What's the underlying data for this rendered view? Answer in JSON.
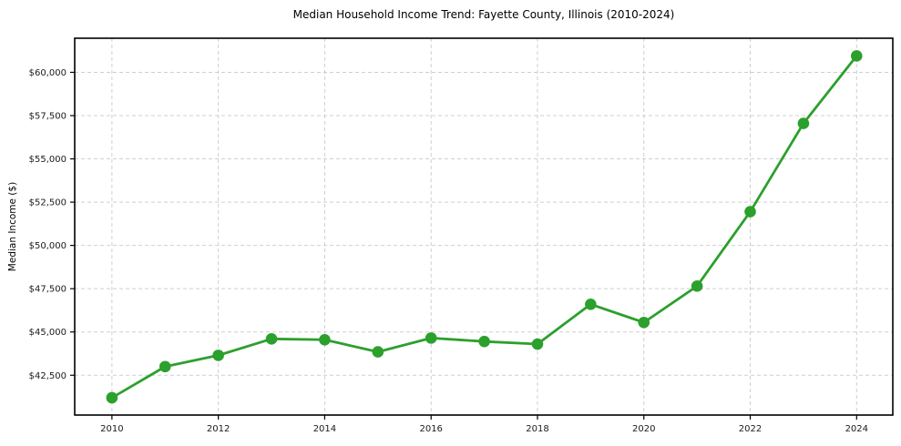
{
  "chart_data": {
    "type": "line",
    "title": "Median Household Income Trend: Fayette County, Illinois (2010-2024)",
    "xlabel": "",
    "ylabel": "Median Income ($)",
    "series_name": "Median Household Income",
    "x": [
      2010,
      2011,
      2012,
      2013,
      2014,
      2015,
      2016,
      2017,
      2018,
      2019,
      2020,
      2021,
      2022,
      2023,
      2024
    ],
    "values": [
      41200,
      43000,
      43650,
      44600,
      44550,
      43850,
      44650,
      44450,
      44300,
      46600,
      45550,
      47650,
      51950,
      57050,
      60950
    ],
    "xticks": [
      2010,
      2012,
      2014,
      2016,
      2018,
      2020,
      2022,
      2024
    ],
    "xtick_labels": [
      "2010",
      "2012",
      "2014",
      "2016",
      "2018",
      "2020",
      "2022",
      "2024"
    ],
    "yticks": [
      42500,
      45000,
      47500,
      50000,
      52500,
      55000,
      57500,
      60000
    ],
    "ytick_labels": [
      "$42,500",
      "$45,000",
      "$47,500",
      "$50,000",
      "$52,500",
      "$55,000",
      "$57,500",
      "$60,000"
    ],
    "xlim": [
      2009.3,
      2024.68
    ],
    "ylim": [
      40200,
      61970
    ],
    "grid": true,
    "grid_style": "dashed",
    "legend": false,
    "colors": {
      "line": "#2ca02c",
      "marker": "#2ca02c",
      "grid": "#cfcfcf",
      "spine": "#000000",
      "background": "#ffffff",
      "text": "#1a1a1a"
    }
  }
}
